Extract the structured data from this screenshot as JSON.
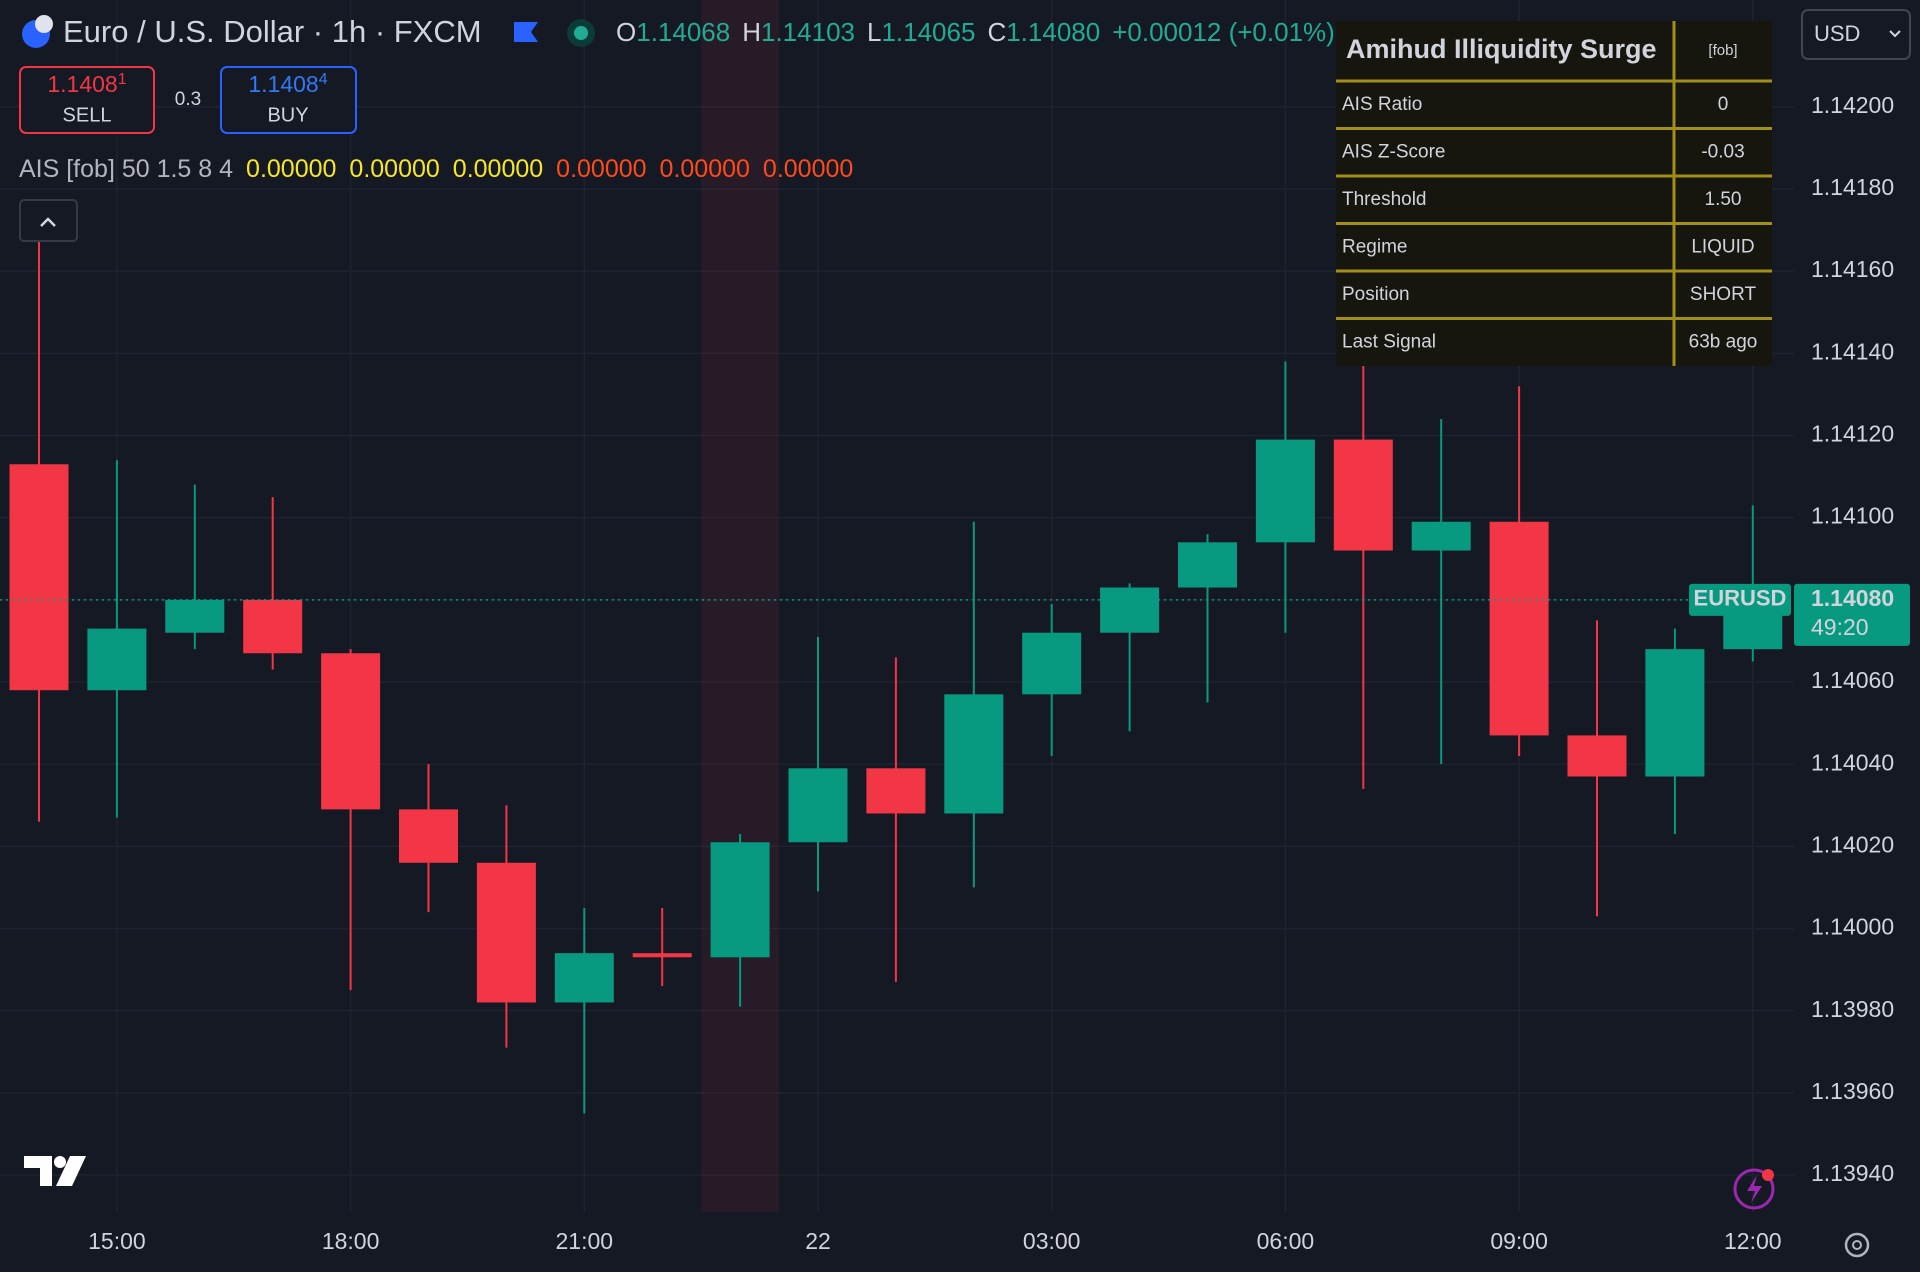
{
  "header": {
    "symbol_title": "Euro / U.S. Dollar · 1h · FXCM",
    "ohlc": [
      {
        "label": "O",
        "value": "1.14068"
      },
      {
        "label": "H",
        "value": "1.14103"
      },
      {
        "label": "L",
        "value": "1.14065"
      },
      {
        "label": "C",
        "value": "1.14080"
      }
    ],
    "change": "+0.00012 (+0.01%)",
    "currency": "USD"
  },
  "trade": {
    "sell": {
      "price": "1.1408",
      "pip": "1",
      "label": "SELL"
    },
    "spread": "0.3",
    "buy": {
      "price": "1.1408",
      "pip": "4",
      "label": "BUY"
    }
  },
  "indicator": {
    "name": "AIS [fob] 50 1.5 8 4",
    "values": [
      {
        "text": "0.00000",
        "color": "#f7e625"
      },
      {
        "text": "0.00000",
        "color": "#f7e625"
      },
      {
        "text": "0.00000",
        "color": "#f7e625"
      },
      {
        "text": "0.00000",
        "color": "#ff4a1c"
      },
      {
        "text": "0.00000",
        "color": "#ff4a1c"
      },
      {
        "text": "0.00000",
        "color": "#ff4a1c"
      }
    ]
  },
  "table": {
    "title": "Amihud Illiquidity Surge",
    "tag": "[fob]",
    "rows": [
      {
        "label": "AIS Ratio",
        "value": "0",
        "color": "#ffffff"
      },
      {
        "label": "AIS Z-Score",
        "value": "-0.03",
        "color": "#c9c9c9"
      },
      {
        "label": "Threshold",
        "value": "1.50",
        "color": "#c9c9c9"
      },
      {
        "label": "Regime",
        "value": "LIQUID",
        "color": "#c9c9c9"
      },
      {
        "label": "Position",
        "value": "SHORT",
        "color": "#ff3d2e"
      },
      {
        "label": "Last Signal",
        "value": "63b ago",
        "color": "#ffffff"
      }
    ]
  },
  "price_label": {
    "symbol": "EURUSD",
    "price": "1.14080",
    "countdown": "49:20"
  },
  "chart_data": {
    "type": "candlestick",
    "categories": [
      null,
      "15:00",
      null,
      null,
      "18:00",
      null,
      null,
      "21:00",
      null,
      null,
      "22",
      null,
      null,
      "03:00",
      null,
      null,
      "06:00",
      null,
      null,
      "09:00",
      null,
      null,
      "12:00"
    ],
    "open": [
      1.14113,
      1.14058,
      1.14072,
      1.1408,
      1.14067,
      1.14029,
      1.14016,
      1.13982,
      1.13994,
      1.13993,
      1.14021,
      1.14039,
      1.14028,
      1.14057,
      1.14072,
      1.14083,
      1.14094,
      1.14119,
      1.14092,
      1.14099,
      1.14047,
      1.14037,
      1.14068
    ],
    "high": [
      1.14175,
      1.14114,
      1.14108,
      1.14105,
      1.14068,
      1.1404,
      1.1403,
      1.14005,
      1.14005,
      1.14023,
      1.14071,
      1.14066,
      1.14099,
      1.14079,
      1.14084,
      1.14096,
      1.14138,
      1.1416,
      1.14124,
      1.14132,
      1.14075,
      1.14073,
      1.14103
    ],
    "low": [
      1.14026,
      1.14027,
      1.14068,
      1.14063,
      1.13985,
      1.14004,
      1.13971,
      1.13955,
      1.13986,
      1.13981,
      1.14009,
      1.13987,
      1.1401,
      1.14042,
      1.14048,
      1.14055,
      1.14072,
      1.14034,
      1.1404,
      1.14042,
      1.14003,
      1.14023,
      1.14065
    ],
    "close": [
      1.14058,
      1.14073,
      1.1408,
      1.14067,
      1.14029,
      1.14016,
      1.13982,
      1.13994,
      1.13993,
      1.14021,
      1.14039,
      1.14028,
      1.14057,
      1.14072,
      1.14083,
      1.14094,
      1.14119,
      1.14092,
      1.14099,
      1.14047,
      1.14037,
      1.14068,
      1.1408
    ],
    "up_color": "#089981",
    "down_color": "#f23645",
    "ylim": [
      1.13931,
      1.14226
    ],
    "yticks": [
      {
        "value": 1.1394,
        "label": "1.13940"
      },
      {
        "value": 1.1396,
        "label": "1.13960"
      },
      {
        "value": 1.1398,
        "label": "1.13980"
      },
      {
        "value": 1.14,
        "label": "1.14000"
      },
      {
        "value": 1.1402,
        "label": "1.14020"
      },
      {
        "value": 1.1404,
        "label": "1.14040"
      },
      {
        "value": 1.1406,
        "label": "1.14060"
      },
      {
        "value": 1.1408,
        "label": "1.14080"
      },
      {
        "value": 1.141,
        "label": "1.14100"
      },
      {
        "value": 1.1412,
        "label": "1.14120"
      },
      {
        "value": 1.1414,
        "label": "1.14140"
      },
      {
        "value": 1.1416,
        "label": "1.14160"
      },
      {
        "value": 1.1418,
        "label": "1.14180"
      },
      {
        "value": 1.142,
        "label": "1.14200"
      }
    ],
    "grid": true
  }
}
